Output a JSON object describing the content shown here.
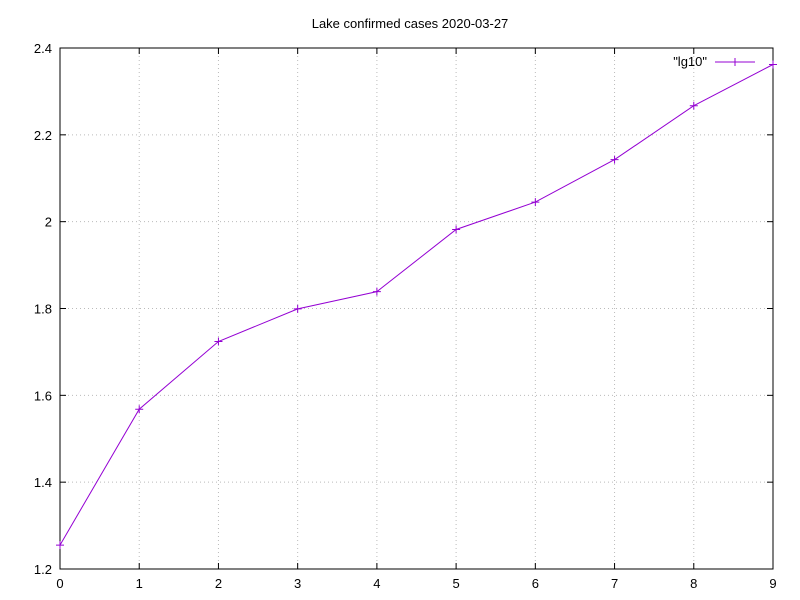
{
  "chart_data": {
    "type": "line",
    "title": "Lake confirmed cases 2020-03-27",
    "xlabel": "",
    "ylabel": "",
    "xlim": [
      0,
      9
    ],
    "ylim": [
      1.2,
      2.4
    ],
    "x_ticks": [
      "0",
      "1",
      "2",
      "3",
      "4",
      "5",
      "6",
      "7",
      "8",
      "9"
    ],
    "y_ticks": [
      "1.2",
      "1.4",
      "1.6",
      "1.8",
      "2",
      "2.2",
      "2.4"
    ],
    "grid": true,
    "legend_position": "top-right",
    "series": [
      {
        "name": "\"lg10\"",
        "color": "#9400d3",
        "marker": "plus",
        "x": [
          0,
          1,
          2,
          3,
          4,
          5,
          6,
          7,
          8,
          9
        ],
        "y": [
          1.255,
          1.568,
          1.724,
          1.799,
          1.839,
          1.982,
          2.045,
          2.143,
          2.267,
          2.362
        ]
      }
    ]
  }
}
